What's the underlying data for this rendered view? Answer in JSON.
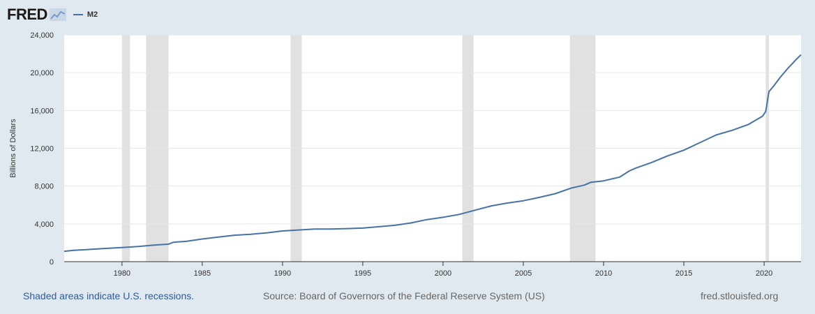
{
  "header": {
    "logo_text": "FRED",
    "logo_icon": "chart-line-icon"
  },
  "colors": {
    "series": "#4572a7",
    "recession": "#e1e1e1",
    "plot_bg": "#ffffff",
    "page_bg": "#e1e9f0"
  },
  "footer": {
    "recession_note": "Shaded areas indicate U.S. recessions.",
    "source": "Source: Board of Governors of the Federal Reserve System (US)",
    "site": "fred.stlouisfed.org"
  },
  "chart_data": {
    "type": "line",
    "title": "",
    "xlabel": "",
    "ylabel": "Billions of Dollars",
    "xlim": [
      1976.4,
      2022.3
    ],
    "ylim": [
      0,
      24000
    ],
    "yticks": [
      0,
      4000,
      8000,
      12000,
      16000,
      20000,
      24000
    ],
    "ytick_labels": [
      "0",
      "4,000",
      "8,000",
      "12,000",
      "16,000",
      "20,000",
      "24,000"
    ],
    "xticks": [
      1980,
      1985,
      1990,
      1995,
      2000,
      2005,
      2010,
      2015,
      2020
    ],
    "xtick_labels": [
      "1980",
      "1985",
      "1990",
      "1995",
      "2000",
      "2005",
      "2010",
      "2015",
      "2020"
    ],
    "grid": true,
    "legend": "top-left",
    "recessions": [
      [
        1980.0,
        1980.5
      ],
      [
        1981.5,
        1982.9
      ],
      [
        1990.5,
        1991.2
      ],
      [
        2001.2,
        2001.9
      ],
      [
        2007.9,
        2009.5
      ],
      [
        2020.1,
        2020.3
      ]
    ],
    "series": [
      {
        "name": "M2",
        "x": [
          1976.4,
          1977.0,
          1978.0,
          1979.0,
          1980.0,
          1981.0,
          1982.0,
          1982.9,
          1983.2,
          1984.0,
          1985.0,
          1986.0,
          1987.0,
          1988.0,
          1989.0,
          1990.0,
          1991.0,
          1992.0,
          1993.0,
          1994.0,
          1995.0,
          1996.0,
          1997.0,
          1998.0,
          1999.0,
          2000.0,
          2001.0,
          2002.0,
          2003.0,
          2004.0,
          2005.0,
          2006.0,
          2007.0,
          2008.0,
          2008.8,
          2009.2,
          2010.0,
          2011.0,
          2011.6,
          2012.0,
          2013.0,
          2014.0,
          2015.0,
          2016.0,
          2017.0,
          2018.0,
          2019.0,
          2019.9,
          2020.1,
          2020.3,
          2020.6,
          2021.0,
          2021.5,
          2022.0,
          2022.3
        ],
        "y": [
          1100,
          1200,
          1300,
          1400,
          1500,
          1600,
          1750,
          1850,
          2050,
          2150,
          2400,
          2600,
          2800,
          2900,
          3050,
          3250,
          3350,
          3450,
          3450,
          3500,
          3550,
          3700,
          3850,
          4100,
          4450,
          4700,
          5000,
          5450,
          5900,
          6200,
          6450,
          6800,
          7200,
          7800,
          8100,
          8400,
          8550,
          8950,
          9600,
          9900,
          10500,
          11200,
          11800,
          12600,
          13400,
          13900,
          14500,
          15400,
          15900,
          18000,
          18600,
          19500,
          20500,
          21400,
          21900
        ]
      }
    ]
  }
}
